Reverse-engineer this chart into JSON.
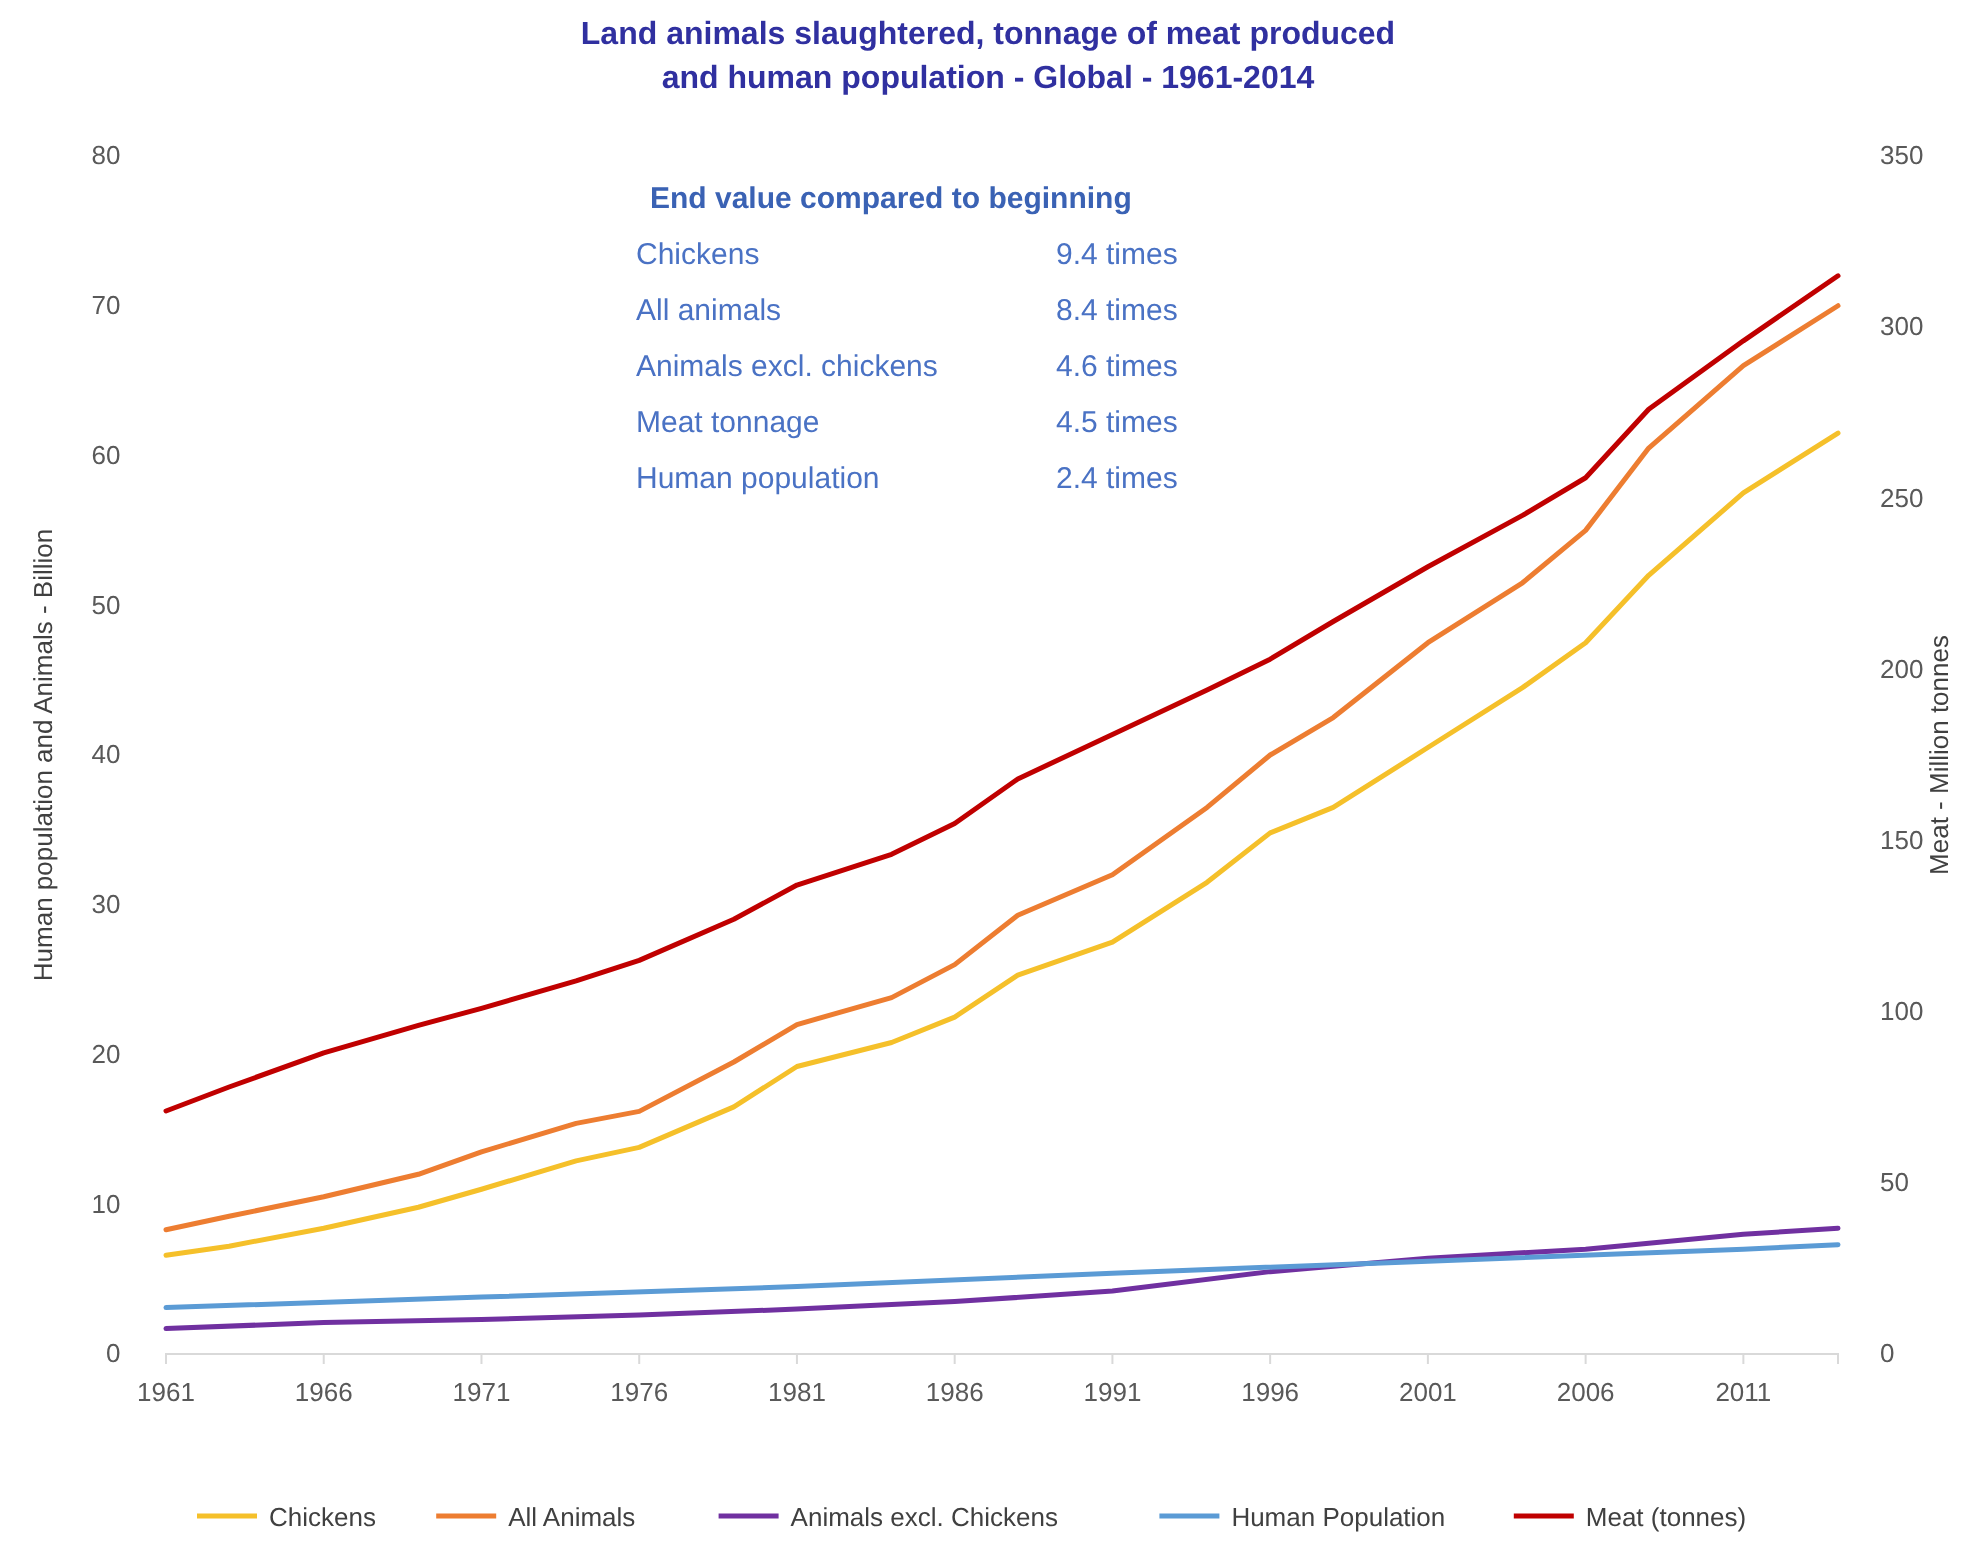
{
  "chart_data": {
    "type": "line",
    "title": "Land  animals slaughtered, tonnage of meat produced\nand human population - Global - 1961-2014",
    "ylabel": "Human population and Animals - Billion",
    "y2label": "Meat - Million tonnes",
    "x": [
      1961,
      1963,
      1966,
      1969,
      1971,
      1974,
      1976,
      1979,
      1981,
      1984,
      1986,
      1988,
      1991,
      1994,
      1996,
      1998,
      2001,
      2004,
      2006,
      2008,
      2011,
      2014
    ],
    "xlim": [
      1961,
      2014
    ],
    "xticks": [
      1961,
      1966,
      1971,
      1976,
      1981,
      1986,
      1991,
      1996,
      2001,
      2006,
      2011
    ],
    "ylim": [
      0,
      80
    ],
    "yticks": [
      0,
      10,
      20,
      30,
      40,
      50,
      60,
      70,
      80
    ],
    "y2lim": [
      0,
      350
    ],
    "y2ticks": [
      0,
      50,
      100,
      150,
      200,
      250,
      300,
      350
    ],
    "grid": false,
    "legend": "bottom",
    "line_style": "solid",
    "marker": "none",
    "series": [
      {
        "name": "Chickens",
        "color": "#f5c02a",
        "values": [
          6.6,
          7.2,
          8.4,
          9.8,
          11.0,
          12.9,
          13.8,
          16.5,
          19.2,
          20.8,
          22.5,
          25.3,
          27.5,
          31.5,
          34.8,
          36.5,
          40.5,
          44.5,
          47.5,
          52,
          57.5,
          61.5
        ]
      },
      {
        "name": "All Animals",
        "color": "#ed7d31",
        "values": [
          8.3,
          9.2,
          10.5,
          12.0,
          13.5,
          15.4,
          16.2,
          19.5,
          22,
          23.8,
          26,
          29.3,
          32,
          36.5,
          40,
          42.5,
          47.5,
          51.5,
          55,
          60.5,
          66,
          70
        ]
      },
      {
        "name": "Animals excl. Chickens",
        "color": "#7030a0",
        "x": [
          1961,
          1966,
          1971,
          1976,
          1981,
          1986,
          1991,
          1996,
          2001,
          2006,
          2011,
          2014
        ],
        "values": [
          1.7,
          2.1,
          2.3,
          2.6,
          3.0,
          3.5,
          4.2,
          5.5,
          6.4,
          7.0,
          8.0,
          8.4
        ]
      },
      {
        "name": "Human Population",
        "color": "#5b9bd5",
        "x": [
          1961,
          1971,
          1981,
          1991,
          2001,
          2011,
          2014
        ],
        "values": [
          3.1,
          3.8,
          4.5,
          5.4,
          6.2,
          7.0,
          7.3
        ]
      },
      {
        "name": "Meat (tonnes)",
        "color": "#c00000",
        "axis": "y2",
        "values": [
          71,
          78,
          88,
          96,
          101,
          109,
          115,
          127,
          137,
          146,
          155,
          168,
          181,
          194,
          203,
          214,
          230,
          245,
          256,
          276,
          296,
          315
        ]
      }
    ],
    "annotations": [
      "End value compared to beginning",
      "Chickens",
      "9.4 times",
      "All animals",
      "8.4 times",
      "Animals excl. chickens",
      "4.6 times",
      "Meat tonnage",
      "4.5 times",
      "Human population",
      "2.4 times"
    ]
  }
}
